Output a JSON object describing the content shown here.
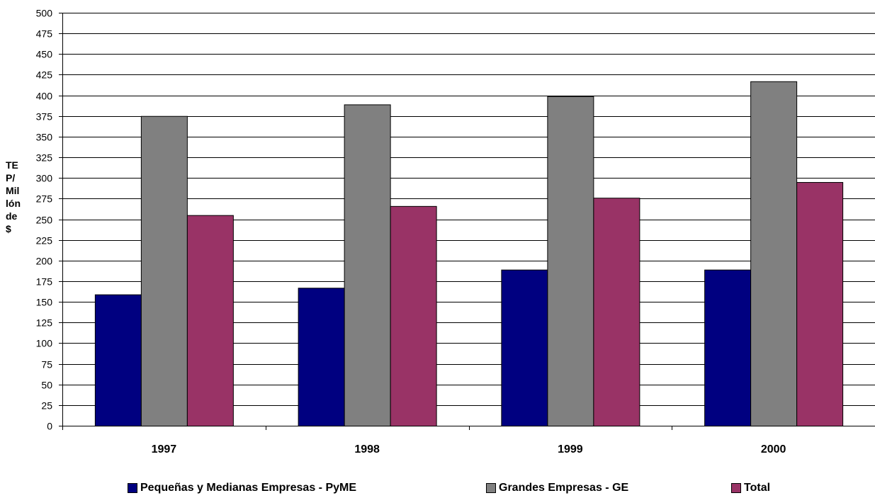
{
  "chart_data": {
    "type": "bar",
    "categories": [
      "1997",
      "1998",
      "1999",
      "2000"
    ],
    "series": [
      {
        "name": "Pequeñas y Medianas Empresas - PyME",
        "color": "#000080",
        "values": [
          159,
          167,
          189,
          189
        ]
      },
      {
        "name": "Grandes Empresas - GE",
        "color": "#808080",
        "values": [
          375,
          389,
          399,
          417
        ]
      },
      {
        "name": "Total",
        "color": "#993366",
        "values": [
          255,
          266,
          276,
          295
        ]
      }
    ],
    "ylabel_lines": [
      "TE",
      "P/",
      "Mil",
      "lón",
      "de",
      "$"
    ],
    "ylim": [
      0,
      500
    ],
    "ytick_step": 25,
    "yticks": [
      "0",
      "25",
      "50",
      "75",
      "100",
      "125",
      "150",
      "175",
      "200",
      "225",
      "250",
      "275",
      "300",
      "325",
      "350",
      "375",
      "400",
      "425",
      "450",
      "475",
      "500"
    ],
    "grid": true,
    "legend_position": "bottom"
  }
}
